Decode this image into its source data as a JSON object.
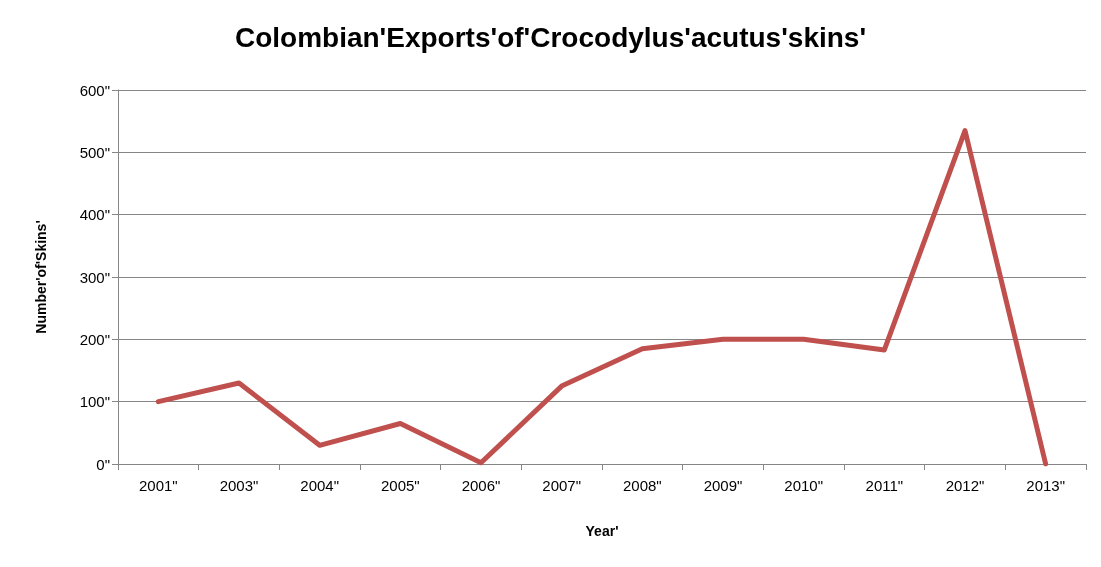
{
  "chart_data": {
    "type": "line",
    "title": "Colombian'Exports'of'Crocodylus'acutus'skins'",
    "xlabel": "Year'",
    "ylabel": "Number'of'Skins'",
    "categories": [
      "2001\"",
      "2003\"",
      "2004\"",
      "2005\"",
      "2006\"",
      "2007\"",
      "2008\"",
      "2009\"",
      "2010\"",
      "2011\"",
      "2012\"",
      "2013\""
    ],
    "series": [
      {
        "color": "#c0504d",
        "values": [
          100,
          130,
          30,
          65,
          2,
          125,
          185,
          200,
          200,
          183,
          535,
          0
        ]
      }
    ],
    "ylim": [
      0,
      600
    ],
    "yticks": [
      {
        "value": 0,
        "label": "0\""
      },
      {
        "value": 100,
        "label": "100\""
      },
      {
        "value": 200,
        "label": "200\""
      },
      {
        "value": 300,
        "label": "300\""
      },
      {
        "value": 400,
        "label": "400\""
      },
      {
        "value": 500,
        "label": "500\""
      },
      {
        "value": 600,
        "label": "600\""
      }
    ],
    "grid": "y",
    "marker": "none",
    "line_style": "solid"
  }
}
